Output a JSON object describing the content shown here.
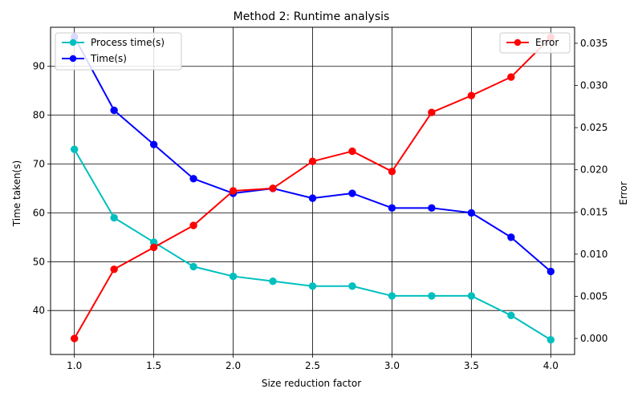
{
  "chart_data": {
    "type": "line",
    "title": "Method 2: Runtime analysis",
    "xlabel": "Size reduction factor",
    "ylabel": "Time taken(s)",
    "y2label": "Error",
    "xlim": [
      0.85,
      4.15
    ],
    "ylim": [
      31,
      98
    ],
    "y2lim": [
      -0.0019,
      0.0369
    ],
    "x": [
      1.0,
      1.25,
      1.5,
      1.75,
      2.0,
      2.25,
      2.5,
      2.75,
      3.0,
      3.25,
      3.5,
      3.75,
      4.0
    ],
    "x_ticks": [
      1.0,
      1.5,
      2.0,
      2.5,
      3.0,
      3.5,
      4.0
    ],
    "x_tick_labels": [
      "1.0",
      "1.5",
      "2.0",
      "2.5",
      "3.0",
      "3.5",
      "4.0"
    ],
    "y_ticks": [
      40,
      50,
      60,
      70,
      80,
      90
    ],
    "y_tick_labels": [
      "40",
      "50",
      "60",
      "70",
      "80",
      "90"
    ],
    "y2_ticks": [
      0.0,
      0.005,
      0.01,
      0.015,
      0.02,
      0.025,
      0.03,
      0.035
    ],
    "y2_tick_labels": [
      "0.000",
      "0.005",
      "0.010",
      "0.015",
      "0.020",
      "0.025",
      "0.030",
      "0.035"
    ],
    "grid": true,
    "series": [
      {
        "name": "Process time(s)",
        "axis": "left",
        "color": "#00bfbf",
        "marker": "circle",
        "values": [
          73,
          59,
          54,
          49,
          47,
          46,
          45,
          45,
          43,
          43,
          43,
          39,
          34
        ]
      },
      {
        "name": "Time(s)",
        "axis": "left",
        "color": "#0000ff",
        "marker": "circle",
        "values": [
          96,
          81,
          74,
          67,
          64,
          65,
          63,
          64,
          61,
          61,
          60,
          55,
          48
        ]
      },
      {
        "name": "Error",
        "axis": "right",
        "color": "#ff0000",
        "marker": "circle",
        "values": [
          0.0,
          0.0082,
          0.0108,
          0.0134,
          0.0175,
          0.0178,
          0.021,
          0.0222,
          0.0198,
          0.0268,
          0.0288,
          0.031,
          0.0357
        ]
      }
    ],
    "legends": [
      {
        "placement": "upper left",
        "entries": [
          "Process time(s)",
          "Time(s)"
        ]
      },
      {
        "placement": "upper right",
        "entries": [
          "Error"
        ]
      }
    ]
  }
}
